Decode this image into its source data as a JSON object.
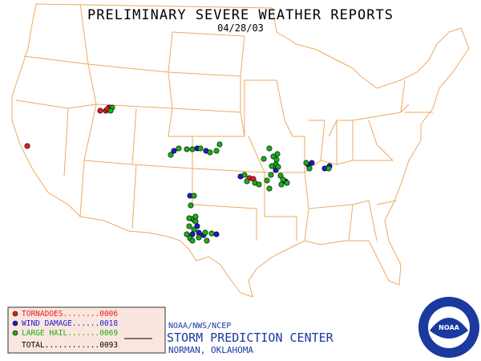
{
  "header": {
    "title": "PRELIMINARY SEVERE WEATHER REPORTS",
    "date": "04/28/03"
  },
  "legend": {
    "rows": [
      {
        "text": "TORNADOES........0006",
        "color": "#e02020"
      },
      {
        "text": "WIND DAMAGE......0018",
        "color": "#1c1cd0"
      },
      {
        "text": "LARGE HAIL.......0069",
        "color": "#18b018"
      }
    ],
    "total": "TOTAL............0093"
  },
  "footer": {
    "agency": "NOAA/NWS/NCEP",
    "center": "STORM PREDICTION CENTER",
    "location": "NORMAN, OKLAHOMA"
  },
  "logo_text": "NOAA"
}
